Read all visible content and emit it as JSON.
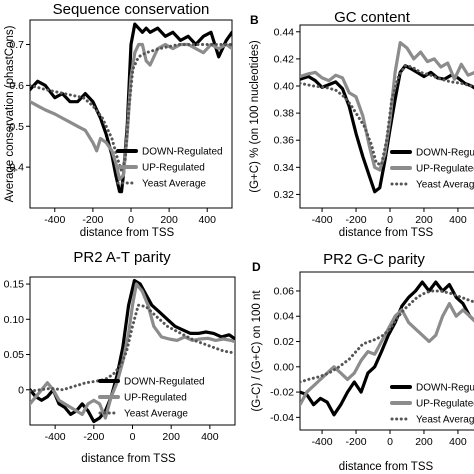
{
  "chart_data": [
    {
      "type": "line",
      "letter": "",
      "title": "Sequence conservation",
      "xlabel": "distance from TSS",
      "ylabel": "Average conservation (phastCons)",
      "xlim": [
        -530,
        530
      ],
      "ylim": [
        0.3,
        0.76
      ],
      "xticks": [
        -400,
        -200,
        0,
        200,
        400
      ],
      "xtick_labels": [
        "-400",
        "-200",
        "0",
        "200",
        "400"
      ],
      "yticks": [
        0.4,
        0.5,
        0.6,
        0.7
      ],
      "ytick_labels": [
        "0.4",
        "0.5",
        "0.6",
        "0.7"
      ],
      "legend_position": "bottom-right",
      "series": [
        {
          "name": "DOWN-Regulated",
          "style": "solid",
          "color": "#000000",
          "x": [
            -530,
            -490,
            -450,
            -400,
            -360,
            -320,
            -280,
            -240,
            -200,
            -160,
            -130,
            -100,
            -80,
            -60,
            -50,
            -40,
            -20,
            0,
            20,
            40,
            60,
            80,
            100,
            140,
            180,
            220,
            260,
            300,
            340,
            380,
            420,
            460,
            500,
            530
          ],
          "y": [
            0.59,
            0.61,
            0.6,
            0.57,
            0.58,
            0.56,
            0.56,
            0.58,
            0.56,
            0.52,
            0.48,
            0.43,
            0.38,
            0.34,
            0.34,
            0.38,
            0.5,
            0.7,
            0.75,
            0.74,
            0.73,
            0.74,
            0.73,
            0.74,
            0.72,
            0.73,
            0.71,
            0.72,
            0.7,
            0.72,
            0.73,
            0.67,
            0.71,
            0.73
          ]
        },
        {
          "name": "UP-Regulated",
          "style": "solid",
          "color": "#8c8c8c",
          "x": [
            -530,
            -490,
            -450,
            -400,
            -360,
            -320,
            -280,
            -240,
            -200,
            -180,
            -160,
            -130,
            -100,
            -80,
            -60,
            -40,
            -20,
            0,
            20,
            40,
            60,
            80,
            100,
            140,
            180,
            220,
            260,
            300,
            340,
            380,
            420,
            460,
            500,
            530
          ],
          "y": [
            0.56,
            0.55,
            0.54,
            0.53,
            0.52,
            0.51,
            0.5,
            0.49,
            0.46,
            0.44,
            0.47,
            0.46,
            0.44,
            0.41,
            0.37,
            0.38,
            0.48,
            0.62,
            0.68,
            0.7,
            0.7,
            0.66,
            0.65,
            0.69,
            0.7,
            0.69,
            0.7,
            0.7,
            0.69,
            0.68,
            0.7,
            0.69,
            0.7,
            0.69
          ]
        },
        {
          "name": "Yeast Average",
          "style": "dotted",
          "color": "#555555",
          "x": [
            -530,
            -450,
            -350,
            -250,
            -200,
            -150,
            -100,
            -70,
            -50,
            -30,
            -10,
            10,
            40,
            80,
            150,
            250,
            350,
            450,
            530
          ],
          "y": [
            0.6,
            0.59,
            0.58,
            0.57,
            0.55,
            0.52,
            0.47,
            0.42,
            0.39,
            0.42,
            0.55,
            0.64,
            0.67,
            0.68,
            0.69,
            0.7,
            0.7,
            0.7,
            0.7
          ]
        }
      ]
    },
    {
      "type": "line",
      "letter": "B",
      "title": "GC  content",
      "xlabel": "distance from TSS",
      "ylabel": "(G+C) %  (on 100 nucleotides)",
      "xlim": [
        -530,
        530
      ],
      "ylim": [
        0.31,
        0.445
      ],
      "xticks": [
        -400,
        -200,
        0,
        200,
        400
      ],
      "xtick_labels": [
        "-400",
        "-200",
        "0",
        "200",
        "400"
      ],
      "yticks": [
        0.32,
        0.34,
        0.36,
        0.38,
        0.4,
        0.42,
        0.44
      ],
      "ytick_labels": [
        "0.32",
        "0.34",
        "0.36",
        "0.38",
        "0.40",
        "0.42",
        "0.44"
      ],
      "legend_position": "bottom-right",
      "series": [
        {
          "name": "DOWN-Regulated",
          "style": "solid",
          "color": "#000000",
          "x": [
            -530,
            -480,
            -440,
            -400,
            -360,
            -320,
            -280,
            -240,
            -200,
            -160,
            -120,
            -90,
            -60,
            -30,
            0,
            30,
            60,
            90,
            120,
            160,
            200,
            240,
            280,
            320,
            360,
            400,
            440,
            480,
            530
          ],
          "y": [
            0.405,
            0.407,
            0.404,
            0.399,
            0.401,
            0.403,
            0.398,
            0.385,
            0.365,
            0.348,
            0.333,
            0.322,
            0.325,
            0.345,
            0.368,
            0.39,
            0.41,
            0.415,
            0.413,
            0.41,
            0.407,
            0.41,
            0.406,
            0.405,
            0.408,
            0.406,
            0.402,
            0.4,
            0.396
          ]
        },
        {
          "name": "UP-Regulated",
          "style": "solid",
          "color": "#8c8c8c",
          "x": [
            -530,
            -480,
            -440,
            -400,
            -360,
            -320,
            -280,
            -240,
            -200,
            -160,
            -120,
            -90,
            -60,
            -30,
            0,
            30,
            60,
            100,
            140,
            180,
            220,
            260,
            300,
            340,
            380,
            420,
            460,
            500,
            530
          ],
          "y": [
            0.407,
            0.409,
            0.41,
            0.406,
            0.404,
            0.408,
            0.406,
            0.395,
            0.392,
            0.378,
            0.355,
            0.34,
            0.338,
            0.35,
            0.375,
            0.41,
            0.432,
            0.428,
            0.42,
            0.425,
            0.418,
            0.42,
            0.414,
            0.417,
            0.405,
            0.416,
            0.408,
            0.41,
            0.405
          ]
        },
        {
          "name": "Yeast Average",
          "style": "dotted",
          "color": "#555555",
          "x": [
            -530,
            -450,
            -380,
            -320,
            -270,
            -230,
            -190,
            -150,
            -110,
            -80,
            -50,
            -20,
            10,
            50,
            90,
            130,
            180,
            240,
            300,
            360,
            420,
            480,
            530
          ],
          "y": [
            0.402,
            0.4,
            0.399,
            0.397,
            0.392,
            0.386,
            0.378,
            0.37,
            0.357,
            0.343,
            0.342,
            0.36,
            0.39,
            0.407,
            0.415,
            0.414,
            0.41,
            0.408,
            0.405,
            0.403,
            0.402,
            0.4,
            0.399
          ]
        }
      ]
    },
    {
      "type": "line",
      "letter": "",
      "title": "PR2  A-T parity",
      "xlabel": "distance from TSS",
      "ylabel": "",
      "xlim": [
        -530,
        530
      ],
      "ylim": [
        -0.05,
        0.16
      ],
      "xticks": [
        -400,
        -200,
        0,
        200,
        400
      ],
      "xtick_labels": [
        "-400",
        "-200",
        "0",
        "200",
        "400"
      ],
      "yticks": [
        0,
        0.05,
        0.1,
        0.15
      ],
      "ytick_labels": [
        "0",
        "0.05",
        "0.10",
        "0.15"
      ],
      "legend_position": "bottom-left",
      "series": [
        {
          "name": "DOWN-Regulated",
          "style": "solid",
          "color": "#000000",
          "x": [
            -530,
            -500,
            -470,
            -440,
            -410,
            -380,
            -350,
            -320,
            -290,
            -260,
            -230,
            -200,
            -170,
            -140,
            -110,
            -80,
            -50,
            -20,
            10,
            40,
            70,
            100,
            140,
            180,
            220,
            260,
            300,
            340,
            380,
            420,
            460,
            500,
            530
          ],
          "y": [
            0.0,
            -0.01,
            -0.015,
            -0.01,
            0.0,
            -0.02,
            -0.025,
            -0.035,
            -0.03,
            -0.02,
            -0.03,
            -0.045,
            -0.04,
            -0.03,
            -0.01,
            0.02,
            0.06,
            0.12,
            0.155,
            0.15,
            0.135,
            0.12,
            0.11,
            0.1,
            0.09,
            0.085,
            0.08,
            0.08,
            0.082,
            0.08,
            0.075,
            0.078,
            0.072
          ]
        },
        {
          "name": "UP-Regulated",
          "style": "solid",
          "color": "#8c8c8c",
          "x": [
            -530,
            -500,
            -470,
            -440,
            -410,
            -380,
            -350,
            -320,
            -290,
            -260,
            -230,
            -200,
            -170,
            -140,
            -110,
            -80,
            -50,
            -20,
            0,
            20,
            50,
            80,
            110,
            150,
            190,
            230,
            270,
            310,
            350,
            390,
            430,
            470,
            510,
            530
          ],
          "y": [
            -0.02,
            -0.01,
            0.0,
            0.01,
            0.0,
            -0.015,
            -0.02,
            -0.025,
            -0.03,
            -0.035,
            -0.02,
            -0.015,
            -0.02,
            -0.04,
            -0.01,
            0.01,
            0.04,
            0.08,
            0.12,
            0.15,
            0.14,
            0.12,
            0.09,
            0.075,
            0.072,
            0.07,
            0.075,
            0.07,
            0.072,
            0.073,
            0.07,
            0.072,
            0.07,
            0.068
          ]
        },
        {
          "name": "Yeast Average",
          "style": "dotted",
          "color": "#555555",
          "x": [
            -530,
            -480,
            -420,
            -360,
            -300,
            -240,
            -190,
            -140,
            -100,
            -60,
            -30,
            0,
            30,
            70,
            120,
            180,
            250,
            320,
            400,
            470,
            530
          ],
          "y": [
            -0.002,
            0.0,
            0.002,
            0.0,
            0.005,
            0.01,
            0.012,
            0.015,
            0.022,
            0.035,
            0.055,
            0.09,
            0.12,
            0.118,
            0.105,
            0.09,
            0.08,
            0.07,
            0.062,
            0.055,
            0.052
          ]
        }
      ]
    },
    {
      "type": "line",
      "letter": "D",
      "title": "PR2  G-C parity",
      "xlabel": "distance from TSS",
      "ylabel": "(G-C) / (G+C)  on 100 nt",
      "xlim": [
        -530,
        530
      ],
      "ylim": [
        -0.05,
        0.075
      ],
      "xticks": [
        -400,
        -200,
        0,
        200,
        400
      ],
      "xtick_labels": [
        "-400",
        "-200",
        "0",
        "200",
        "400"
      ],
      "yticks": [
        -0.04,
        -0.02,
        0,
        0.02,
        0.04,
        0.06
      ],
      "ytick_labels": [
        "-0.04",
        "-0.02",
        "0.00",
        "0.02",
        "0.04",
        "0.06"
      ],
      "legend_position": "bottom-right",
      "series": [
        {
          "name": "DOWN-Regulated",
          "style": "solid",
          "color": "#000000",
          "x": [
            -530,
            -490,
            -450,
            -410,
            -370,
            -330,
            -290,
            -250,
            -210,
            -170,
            -130,
            -90,
            -50,
            -10,
            30,
            70,
            110,
            150,
            190,
            230,
            270,
            310,
            350,
            390,
            430,
            470,
            510,
            530
          ],
          "y": [
            -0.02,
            -0.022,
            -0.03,
            -0.025,
            -0.028,
            -0.038,
            -0.03,
            -0.02,
            -0.012,
            -0.02,
            -0.005,
            0.0,
            0.012,
            0.025,
            0.035,
            0.048,
            0.055,
            0.06,
            0.067,
            0.06,
            0.067,
            0.06,
            0.065,
            0.055,
            0.05,
            0.04,
            0.035,
            0.03
          ]
        },
        {
          "name": "UP-Regulated",
          "style": "solid",
          "color": "#8c8c8c",
          "x": [
            -530,
            -490,
            -450,
            -410,
            -370,
            -330,
            -290,
            -250,
            -210,
            -170,
            -130,
            -90,
            -50,
            -10,
            30,
            70,
            110,
            150,
            190,
            230,
            270,
            310,
            350,
            390,
            430,
            470,
            510,
            530
          ],
          "y": [
            -0.03,
            -0.02,
            -0.015,
            -0.01,
            -0.005,
            0.0,
            -0.005,
            -0.01,
            -0.005,
            0.005,
            0.012,
            0.01,
            0.02,
            0.03,
            0.04,
            0.045,
            0.035,
            0.03,
            0.025,
            0.02,
            0.025,
            0.04,
            0.05,
            0.04,
            0.045,
            0.04,
            0.035,
            0.038
          ]
        },
        {
          "name": "Yeast Average",
          "style": "dotted",
          "color": "#555555",
          "x": [
            -530,
            -480,
            -420,
            -360,
            -300,
            -240,
            -200,
            -160,
            -120,
            -80,
            -40,
            0,
            40,
            80,
            120,
            160,
            200,
            240,
            300,
            360,
            420,
            480,
            530
          ],
          "y": [
            -0.012,
            -0.01,
            -0.008,
            -0.005,
            0.0,
            0.006,
            0.012,
            0.018,
            0.02,
            0.022,
            0.025,
            0.03,
            0.038,
            0.045,
            0.05,
            0.055,
            0.058,
            0.06,
            0.06,
            0.058,
            0.055,
            0.052,
            0.05
          ]
        }
      ]
    }
  ]
}
